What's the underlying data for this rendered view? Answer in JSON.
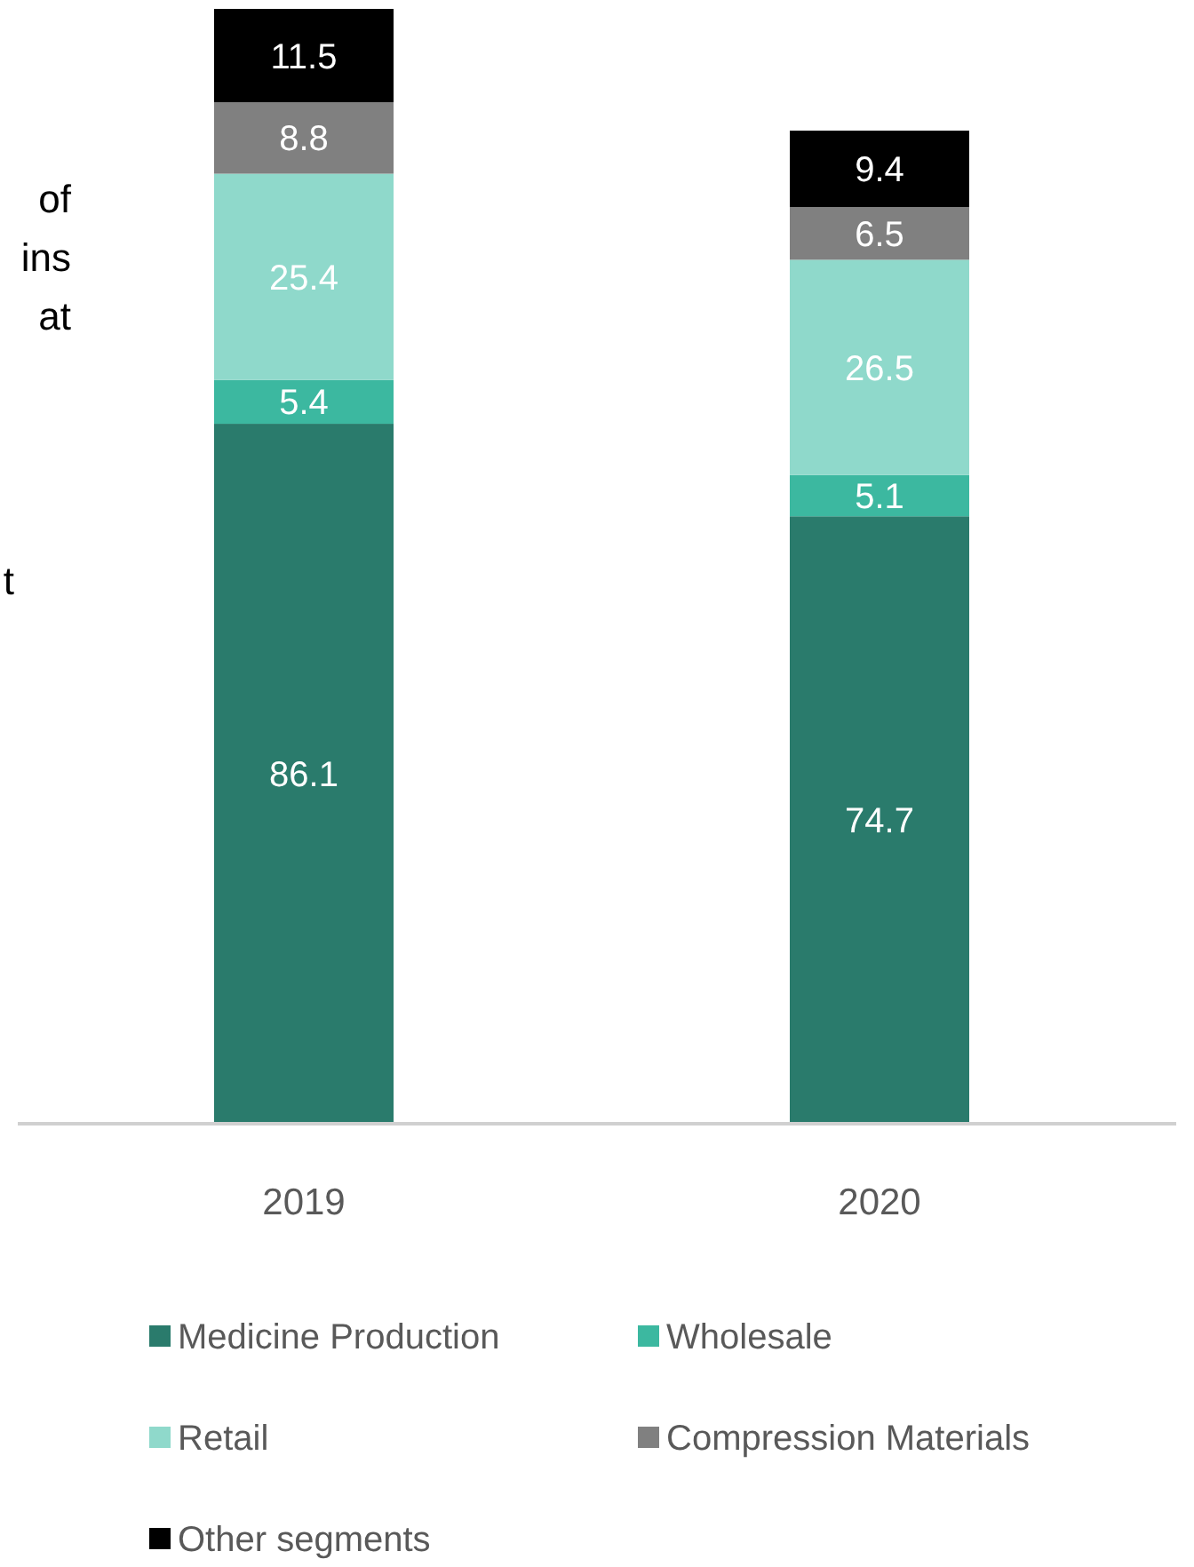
{
  "chart_data": {
    "type": "bar",
    "stacked": true,
    "data_labels": true,
    "legend": "bottom",
    "categories": [
      "2019",
      "2020"
    ],
    "series": [
      {
        "name": "Medicine Production",
        "color": "#2a7b6c",
        "values": [
          86.1,
          74.7
        ]
      },
      {
        "name": "Wholesale",
        "color": "#3cb8a0",
        "values": [
          5.4,
          5.1
        ]
      },
      {
        "name": "Retail",
        "color": "#8fd9cb",
        "values": [
          25.4,
          26.5
        ]
      },
      {
        "name": "Compression Materials",
        "color": "#808080",
        "values": [
          8.8,
          6.5
        ]
      },
      {
        "name": "Other segments",
        "color": "#000000",
        "values": [
          11.5,
          9.4
        ]
      }
    ],
    "annotations": [
      "of",
      "ins",
      "at",
      "t"
    ]
  }
}
